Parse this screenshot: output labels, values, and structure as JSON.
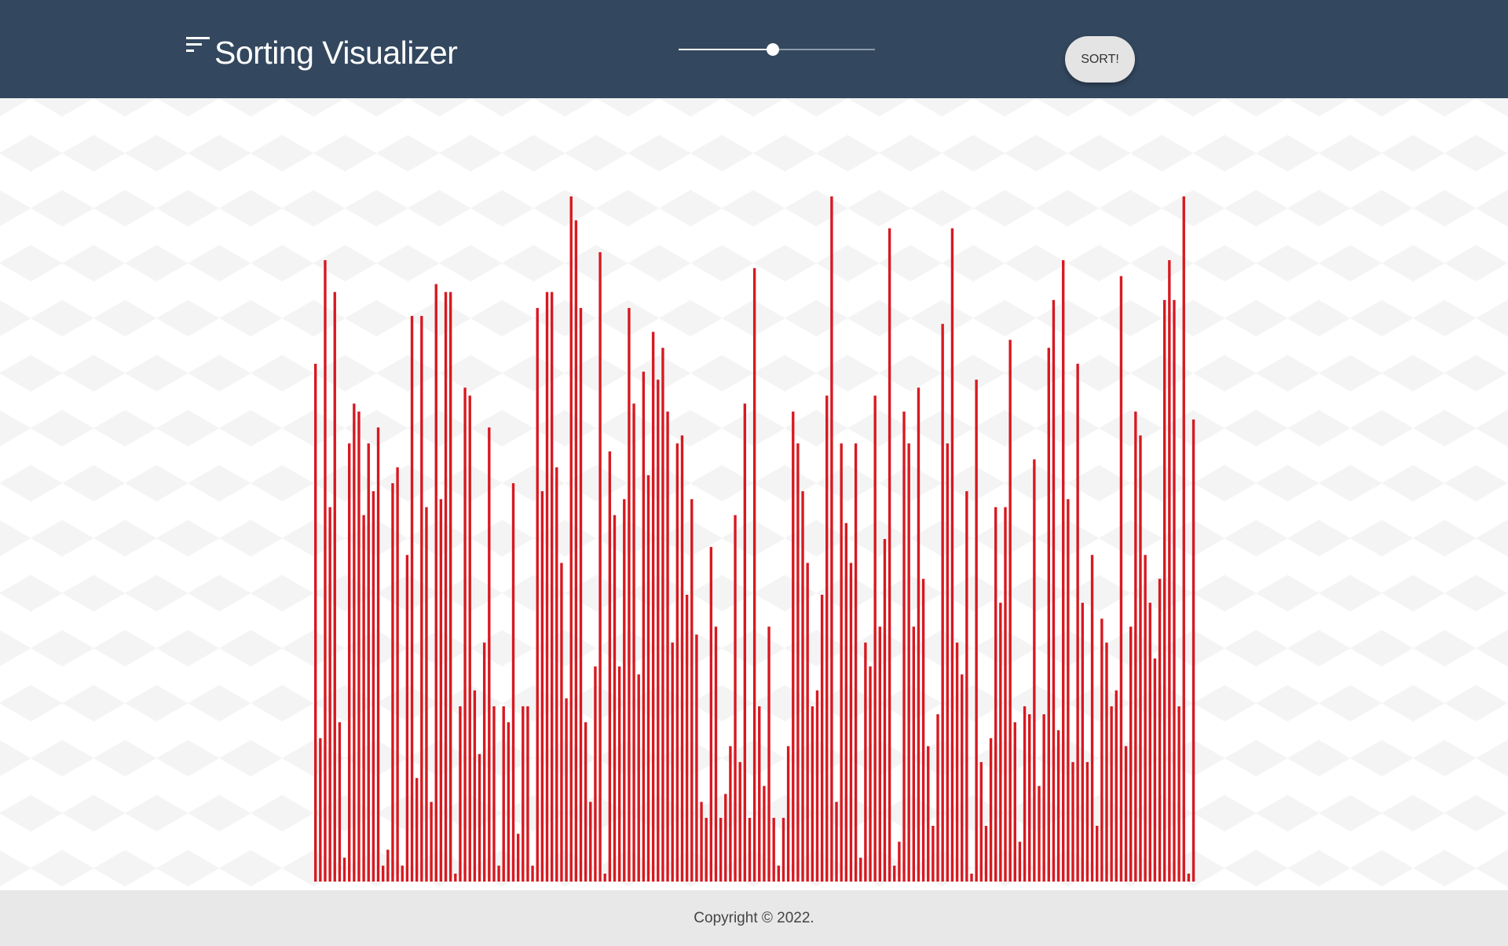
{
  "navbar": {
    "title": "Sorting Visualizer",
    "icon": "sort-icon",
    "background_color": "#33485f"
  },
  "controls": {
    "array_size_slider": {
      "value_fraction": 0.48
    },
    "sort_button_label": "SORT!"
  },
  "array": {
    "bar_color": "#d71920",
    "values": [
      65,
      18,
      78,
      47,
      74,
      20,
      3,
      55,
      60,
      59,
      46,
      55,
      49,
      57,
      2,
      4,
      50,
      52,
      2,
      41,
      71,
      13,
      71,
      47,
      10,
      75,
      48,
      74,
      74,
      1,
      22,
      62,
      61,
      24,
      16,
      30,
      57,
      22,
      2,
      22,
      20,
      50,
      6,
      22,
      22,
      2,
      72,
      49,
      74,
      74,
      52,
      40,
      23,
      86,
      83,
      72,
      20,
      10,
      27,
      79,
      1,
      54,
      46,
      27,
      48,
      72,
      60,
      26,
      64,
      51,
      69,
      63,
      67,
      59,
      30,
      55,
      56,
      36,
      48,
      31,
      10,
      8,
      42,
      32,
      8,
      11,
      17,
      46,
      15,
      60,
      8,
      77,
      22,
      12,
      32,
      8,
      2,
      8,
      17,
      59,
      55,
      49,
      40,
      22,
      24,
      36,
      61,
      86,
      10,
      55,
      45,
      40,
      55,
      3,
      30,
      27,
      61,
      32,
      43,
      82,
      2,
      5,
      59,
      55,
      32,
      62,
      38,
      17,
      7,
      21,
      70,
      55,
      82,
      30,
      26,
      49,
      1,
      63,
      15,
      7,
      18,
      47,
      35,
      47,
      68,
      20,
      5,
      22,
      21,
      53,
      12,
      21,
      67,
      73,
      19,
      78,
      48,
      15,
      65,
      35,
      15,
      41,
      7,
      33,
      30,
      22,
      24,
      76,
      17,
      32,
      59,
      56,
      41,
      35,
      28,
      38,
      73,
      78,
      73,
      22,
      86,
      1,
      58
    ]
  },
  "footer": {
    "copyright": "Copyright © 2022."
  }
}
